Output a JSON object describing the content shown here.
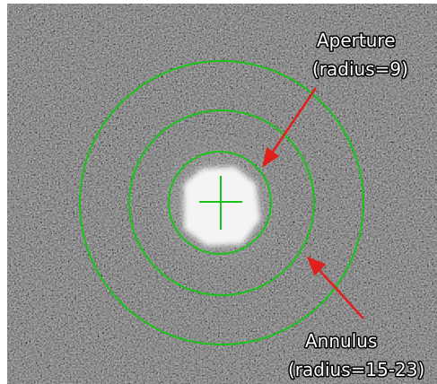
{
  "annotations": {
    "aperture": {
      "title": "Aperture",
      "detail": "(radius=9)"
    },
    "annulus": {
      "title": "Annulus",
      "detail": "(radius=15-23)"
    }
  }
}
